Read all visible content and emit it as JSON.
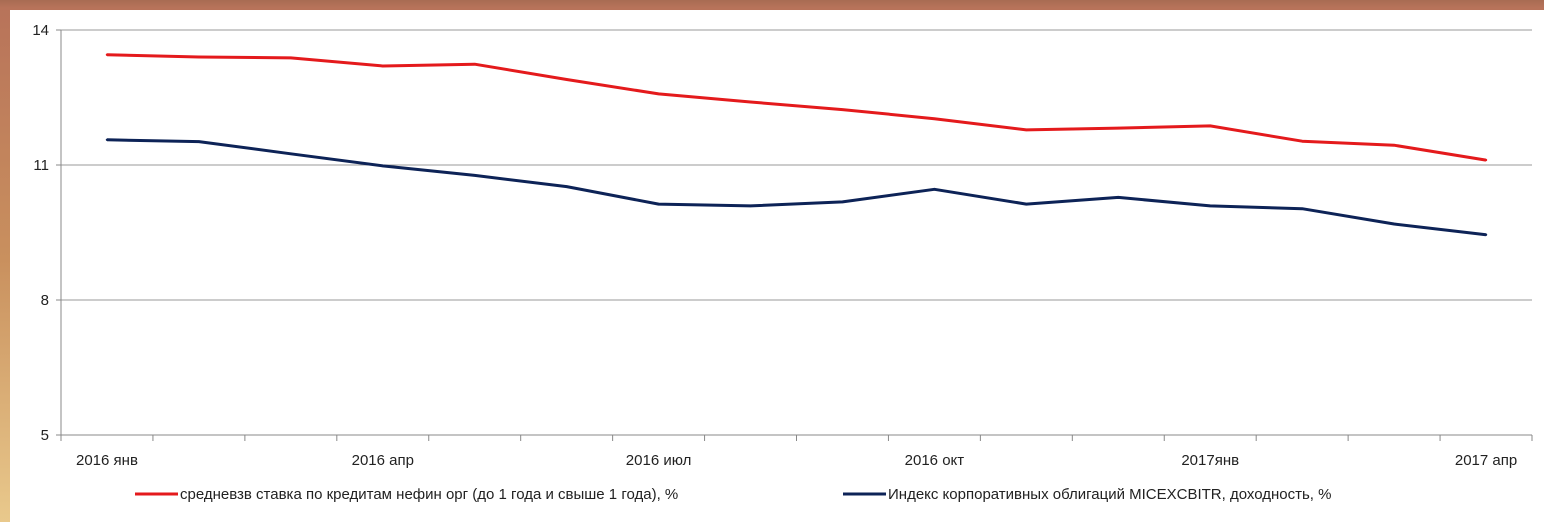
{
  "chart_data": {
    "type": "line",
    "title": "",
    "xlabel": "",
    "ylabel": "",
    "ylim": [
      5,
      14
    ],
    "y_ticks": [
      "14",
      "11",
      "8",
      "5"
    ],
    "y_tick_values": [
      14,
      11,
      8,
      5
    ],
    "categories": [
      "2016 янв",
      "",
      "",
      "2016 апр",
      "",
      "",
      "2016 июл",
      "",
      "",
      "2016 окт",
      "",
      "",
      "2017янв",
      "",
      "",
      "2017 апр"
    ],
    "x_tick_labels": [
      "2016 янв",
      "2016 апр",
      "2016 июл",
      "2016 окт",
      "2017янв",
      "2017 апр"
    ],
    "x_tick_label_indices": [
      0,
      3,
      6,
      9,
      12,
      15
    ],
    "grid": true,
    "legend_position": "bottom",
    "series": [
      {
        "name": "средневзв ставка по кредитам нефин орг (до 1 года и свыше 1 года), %",
        "color": "#e41a1c",
        "values": [
          13.45,
          13.4,
          13.38,
          13.2,
          13.24,
          12.9,
          12.58,
          12.4,
          12.23,
          12.03,
          11.78,
          11.82,
          11.87,
          11.53,
          11.44,
          11.11
        ]
      },
      {
        "name": "Индекс корпоративных облигаций MICEXCBITR, доходность, %",
        "color": "#0d2357",
        "values": [
          11.56,
          11.52,
          11.25,
          10.98,
          10.77,
          10.52,
          10.13,
          10.09,
          10.18,
          10.46,
          10.13,
          10.28,
          10.09,
          10.03,
          9.69,
          9.45
        ]
      }
    ]
  }
}
